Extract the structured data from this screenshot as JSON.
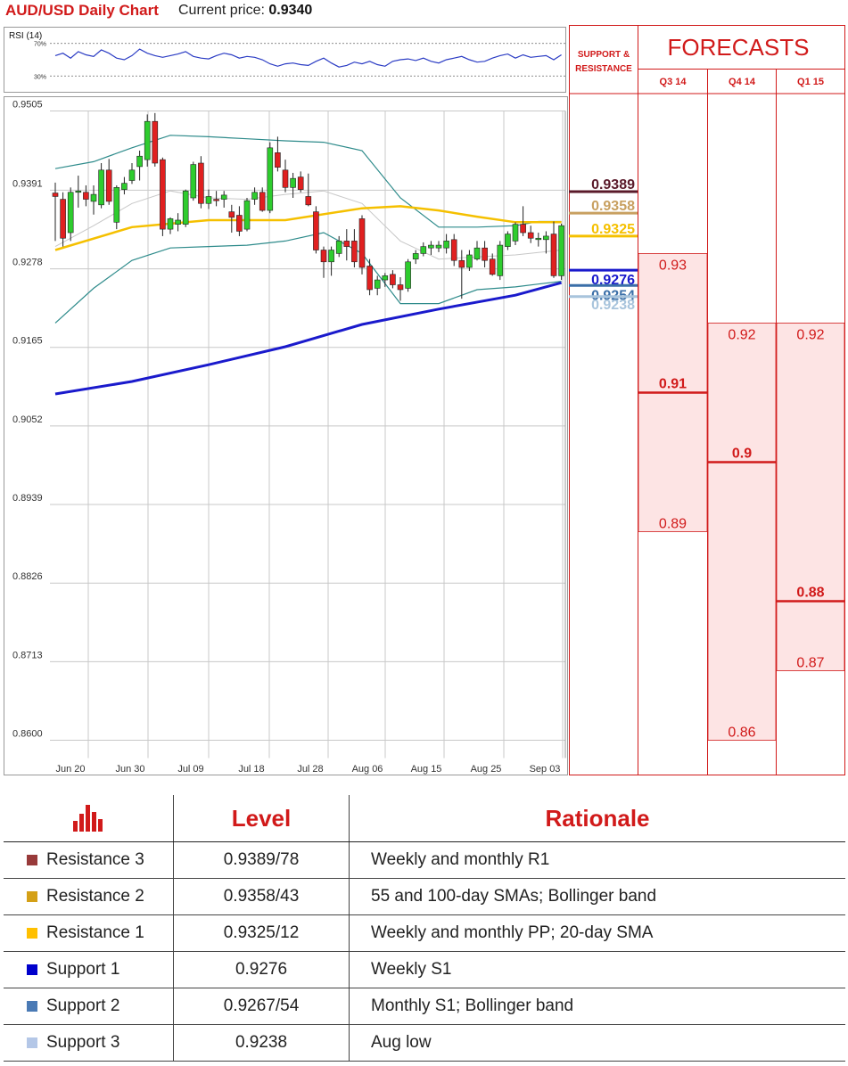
{
  "header": {
    "title": "AUD/USD Daily Chart",
    "price_label": "Current price:",
    "price_value": "0.9340"
  },
  "rsi_panel": {
    "label": "RSI (14)",
    "levels": [
      "70%",
      "30%"
    ]
  },
  "chart_data": [
    {
      "type": "candlestick",
      "title": "AUD/USD Daily Chart",
      "y_ticks": [
        "0.9505",
        "0.9391",
        "0.9278",
        "0.9165",
        "0.9052",
        "0.8939",
        "0.8826",
        "0.8713",
        "0.8600"
      ],
      "ylim": [
        0.86,
        0.9505
      ],
      "x_ticks": [
        "Jun 20",
        "Jun 30",
        "Jul 09",
        "Jul 18",
        "Jul 28",
        "Aug 06",
        "Aug 15",
        "Aug 25",
        "Sep 03"
      ],
      "grid": true,
      "candles": [
        {
          "o": 0.9387,
          "h": 0.9402,
          "l": 0.9318,
          "c": 0.9382
        },
        {
          "o": 0.9378,
          "h": 0.9388,
          "l": 0.931,
          "c": 0.9322
        },
        {
          "o": 0.933,
          "h": 0.9395,
          "l": 0.9318,
          "c": 0.9388
        },
        {
          "o": 0.9388,
          "h": 0.9412,
          "l": 0.9366,
          "c": 0.939
        },
        {
          "o": 0.9388,
          "h": 0.9398,
          "l": 0.9368,
          "c": 0.9378
        },
        {
          "o": 0.9375,
          "h": 0.9398,
          "l": 0.9356,
          "c": 0.9385
        },
        {
          "o": 0.937,
          "h": 0.943,
          "l": 0.9365,
          "c": 0.942
        },
        {
          "o": 0.942,
          "h": 0.9436,
          "l": 0.937,
          "c": 0.9375
        },
        {
          "o": 0.9345,
          "h": 0.9398,
          "l": 0.9335,
          "c": 0.9395
        },
        {
          "o": 0.9392,
          "h": 0.941,
          "l": 0.9385,
          "c": 0.9401
        },
        {
          "o": 0.9405,
          "h": 0.943,
          "l": 0.94,
          "c": 0.942
        },
        {
          "o": 0.9425,
          "h": 0.9448,
          "l": 0.9405,
          "c": 0.944
        },
        {
          "o": 0.9435,
          "h": 0.95,
          "l": 0.9425,
          "c": 0.949
        },
        {
          "o": 0.949,
          "h": 0.9502,
          "l": 0.9425,
          "c": 0.943
        },
        {
          "o": 0.9435,
          "h": 0.9438,
          "l": 0.9325,
          "c": 0.9335
        },
        {
          "o": 0.9335,
          "h": 0.9352,
          "l": 0.9328,
          "c": 0.935
        },
        {
          "o": 0.9342,
          "h": 0.9358,
          "l": 0.9332,
          "c": 0.9348
        },
        {
          "o": 0.9342,
          "h": 0.9392,
          "l": 0.9338,
          "c": 0.939
        },
        {
          "o": 0.938,
          "h": 0.9432,
          "l": 0.9376,
          "c": 0.9428
        },
        {
          "o": 0.943,
          "h": 0.944,
          "l": 0.9365,
          "c": 0.9372
        },
        {
          "o": 0.9372,
          "h": 0.9392,
          "l": 0.9364,
          "c": 0.9382
        },
        {
          "o": 0.9378,
          "h": 0.939,
          "l": 0.9368,
          "c": 0.9376
        },
        {
          "o": 0.9378,
          "h": 0.939,
          "l": 0.9366,
          "c": 0.9384
        },
        {
          "o": 0.936,
          "h": 0.937,
          "l": 0.933,
          "c": 0.9352
        },
        {
          "o": 0.9355,
          "h": 0.9368,
          "l": 0.9325,
          "c": 0.9332
        },
        {
          "o": 0.9335,
          "h": 0.938,
          "l": 0.9332,
          "c": 0.9376
        },
        {
          "o": 0.9378,
          "h": 0.9395,
          "l": 0.937,
          "c": 0.9388
        },
        {
          "o": 0.9388,
          "h": 0.9395,
          "l": 0.936,
          "c": 0.9362
        },
        {
          "o": 0.9362,
          "h": 0.946,
          "l": 0.9358,
          "c": 0.9452
        },
        {
          "o": 0.9445,
          "h": 0.9468,
          "l": 0.9418,
          "c": 0.9424
        },
        {
          "o": 0.942,
          "h": 0.9435,
          "l": 0.9388,
          "c": 0.9395
        },
        {
          "o": 0.9395,
          "h": 0.9416,
          "l": 0.938,
          "c": 0.9408
        },
        {
          "o": 0.941,
          "h": 0.9418,
          "l": 0.9388,
          "c": 0.9392
        },
        {
          "o": 0.9382,
          "h": 0.9415,
          "l": 0.9368,
          "c": 0.937
        },
        {
          "o": 0.936,
          "h": 0.9368,
          "l": 0.93,
          "c": 0.9305
        },
        {
          "o": 0.9305,
          "h": 0.931,
          "l": 0.9265,
          "c": 0.9288
        },
        {
          "o": 0.9288,
          "h": 0.931,
          "l": 0.9268,
          "c": 0.9305
        },
        {
          "o": 0.93,
          "h": 0.9325,
          "l": 0.9295,
          "c": 0.9318
        },
        {
          "o": 0.9318,
          "h": 0.9335,
          "l": 0.929,
          "c": 0.931
        },
        {
          "o": 0.9318,
          "h": 0.9335,
          "l": 0.928,
          "c": 0.9288
        },
        {
          "o": 0.935,
          "h": 0.9355,
          "l": 0.927,
          "c": 0.928
        },
        {
          "o": 0.9282,
          "h": 0.9292,
          "l": 0.924,
          "c": 0.9248
        },
        {
          "o": 0.925,
          "h": 0.9268,
          "l": 0.924,
          "c": 0.9262
        },
        {
          "o": 0.9262,
          "h": 0.9272,
          "l": 0.9252,
          "c": 0.9268
        },
        {
          "o": 0.927,
          "h": 0.9276,
          "l": 0.925,
          "c": 0.9255
        },
        {
          "o": 0.9255,
          "h": 0.9266,
          "l": 0.9232,
          "c": 0.9248
        },
        {
          "o": 0.925,
          "h": 0.9292,
          "l": 0.9245,
          "c": 0.9288
        },
        {
          "o": 0.9292,
          "h": 0.9305,
          "l": 0.9285,
          "c": 0.93
        },
        {
          "o": 0.93,
          "h": 0.9316,
          "l": 0.9296,
          "c": 0.931
        },
        {
          "o": 0.9308,
          "h": 0.9318,
          "l": 0.9298,
          "c": 0.9312
        },
        {
          "o": 0.9308,
          "h": 0.9318,
          "l": 0.9302,
          "c": 0.9312
        },
        {
          "o": 0.9308,
          "h": 0.9328,
          "l": 0.93,
          "c": 0.9318
        },
        {
          "o": 0.932,
          "h": 0.9328,
          "l": 0.9282,
          "c": 0.929
        },
        {
          "o": 0.929,
          "h": 0.9305,
          "l": 0.9235,
          "c": 0.928
        },
        {
          "o": 0.928,
          "h": 0.9305,
          "l": 0.9275,
          "c": 0.9298
        },
        {
          "o": 0.9292,
          "h": 0.9318,
          "l": 0.929,
          "c": 0.9308
        },
        {
          "o": 0.9308,
          "h": 0.9318,
          "l": 0.928,
          "c": 0.929
        },
        {
          "o": 0.9292,
          "h": 0.93,
          "l": 0.9268,
          "c": 0.927
        },
        {
          "o": 0.9268,
          "h": 0.9318,
          "l": 0.9262,
          "c": 0.9312
        },
        {
          "o": 0.931,
          "h": 0.9332,
          "l": 0.9305,
          "c": 0.9328
        },
        {
          "o": 0.9318,
          "h": 0.9345,
          "l": 0.9312,
          "c": 0.9342
        },
        {
          "o": 0.9342,
          "h": 0.9368,
          "l": 0.9325,
          "c": 0.933
        },
        {
          "o": 0.933,
          "h": 0.934,
          "l": 0.9315,
          "c": 0.9322
        },
        {
          "o": 0.932,
          "h": 0.933,
          "l": 0.931,
          "c": 0.9322
        },
        {
          "o": 0.932,
          "h": 0.9332,
          "l": 0.93,
          "c": 0.9325
        },
        {
          "o": 0.9328,
          "h": 0.9346,
          "l": 0.9265,
          "c": 0.9268
        },
        {
          "o": 0.9268,
          "h": 0.9343,
          "l": 0.9262,
          "c": 0.934
        }
      ],
      "series": [
        {
          "name": "",
          "color": "#f5c000",
          "x": [
            0,
            10,
            20,
            30,
            40,
            45,
            50,
            55,
            60,
            66
          ],
          "values": [
            0.9305,
            0.9338,
            0.9348,
            0.9348,
            0.9365,
            0.9368,
            0.9362,
            0.9353,
            0.9345,
            0.9345
          ]
        },
        {
          "name": "",
          "color": "#1a1acc",
          "x": [
            0,
            10,
            20,
            30,
            40,
            50,
            60,
            66
          ],
          "values": [
            0.9098,
            0.9116,
            0.914,
            0.9166,
            0.9198,
            0.922,
            0.924,
            0.9258
          ]
        },
        {
          "name": "",
          "color": "#2e8b8b",
          "x": [
            0,
            5,
            10,
            15,
            20,
            25,
            30,
            35,
            40,
            45,
            50,
            55,
            60,
            63,
            66
          ],
          "values": [
            0.9422,
            0.9432,
            0.9452,
            0.947,
            0.9468,
            0.9465,
            0.9462,
            0.946,
            0.9448,
            0.938,
            0.9338,
            0.9338,
            0.934,
            0.9346,
            0.9346
          ]
        },
        {
          "name": "",
          "color": "#2e8b8b",
          "x": [
            0,
            5,
            10,
            15,
            20,
            25,
            30,
            35,
            40,
            45,
            50,
            55,
            60,
            63,
            66
          ],
          "values": [
            0.92,
            0.925,
            0.929,
            0.9308,
            0.931,
            0.9312,
            0.9318,
            0.933,
            0.93,
            0.9228,
            0.9228,
            0.9248,
            0.9252,
            0.9256,
            0.926
          ]
        },
        {
          "name": "",
          "color": "#c8c8c8",
          "x": [
            0,
            5,
            10,
            15,
            20,
            25,
            30,
            35,
            40,
            45,
            50,
            55,
            60,
            66
          ],
          "values": [
            0.931,
            0.934,
            0.9372,
            0.939,
            0.938,
            0.9378,
            0.9385,
            0.939,
            0.9372,
            0.9318,
            0.9292,
            0.9295,
            0.9298,
            0.9305
          ]
        }
      ]
    },
    {
      "type": "line",
      "title": "RSI (14)",
      "ylim": [
        15,
        85
      ],
      "guides": [
        70,
        30
      ],
      "values": [
        55,
        58,
        52,
        60,
        56,
        54,
        62,
        58,
        52,
        50,
        55,
        63,
        58,
        55,
        53,
        55,
        57,
        60,
        54,
        52,
        51,
        55,
        58,
        56,
        52,
        54,
        53,
        50,
        45,
        42,
        45,
        46,
        44,
        43,
        48,
        52,
        46,
        41,
        43,
        47,
        45,
        48,
        44,
        42,
        48,
        50,
        51,
        49,
        52,
        48,
        46,
        50,
        52,
        54,
        50,
        47,
        48,
        52,
        55,
        57,
        52,
        56,
        53,
        54,
        55,
        50,
        56
      ]
    },
    {
      "type": "table",
      "title": "FORECASTS",
      "ylim": [
        0.86,
        0.9505
      ],
      "columns": [
        "Q3 14",
        "Q4 14",
        "Q1 15"
      ],
      "ranges": [
        {
          "low": 0.89,
          "mid": 0.91,
          "high": 0.93,
          "labels": [
            "0.93",
            "0.91",
            "0.89"
          ]
        },
        {
          "low": 0.86,
          "mid": 0.9,
          "high": 0.92,
          "labels": [
            "0.92",
            "0.9",
            "0.86"
          ]
        },
        {
          "low": 0.87,
          "mid": 0.88,
          "high": 0.92,
          "labels": [
            "0.92",
            "0.88",
            "0.87"
          ]
        }
      ]
    }
  ],
  "levels_panel": {
    "title": "SUPPORT & RESISTANCE",
    "levels": [
      {
        "label": "0.9389",
        "value": 0.9389,
        "color": "#5a1a2a"
      },
      {
        "label": "0.9358",
        "value": 0.9358,
        "color": "#c8a060"
      },
      {
        "label": "0.9325",
        "value": 0.9325,
        "color": "#f5c000"
      },
      {
        "label": "0.9276",
        "value": 0.9276,
        "color": "#1a1acc"
      },
      {
        "label": "0.9254",
        "value": 0.9254,
        "color": "#3b6fa8"
      },
      {
        "label": "0.9238",
        "value": 0.9238,
        "color": "#a8c4dc"
      }
    ]
  },
  "colors": {
    "accent": "#d11a1a",
    "forecast_fill": "#fde4e4",
    "up": "#2ecc2e",
    "down": "#e02020"
  },
  "table": {
    "icon": "bar-chart-icon",
    "header_level": "Level",
    "header_rationale": "Rationale",
    "rows": [
      {
        "name": "Resistance 3",
        "level": "0.9389/78",
        "rationale": "Weekly and monthly R1",
        "color": "#983a3a"
      },
      {
        "name": "Resistance 2",
        "level": "0.9358/43",
        "rationale": "55 and 100-day SMAs; Bollinger band",
        "color": "#d4a017"
      },
      {
        "name": "Resistance 1",
        "level": "0.9325/12",
        "rationale": "Weekly and monthly PP; 20-day SMA",
        "color": "#ffc000"
      },
      {
        "name": "Support 1",
        "level": "0.9276",
        "rationale": "Weekly S1",
        "color": "#0000cc"
      },
      {
        "name": "Support 2",
        "level": "0.9267/54",
        "rationale": "Monthly S1; Bollinger band",
        "color": "#4a7ab5"
      },
      {
        "name": "Support 3",
        "level": "0.9238",
        "rationale": "Aug low",
        "color": "#b4c7e7"
      }
    ]
  }
}
